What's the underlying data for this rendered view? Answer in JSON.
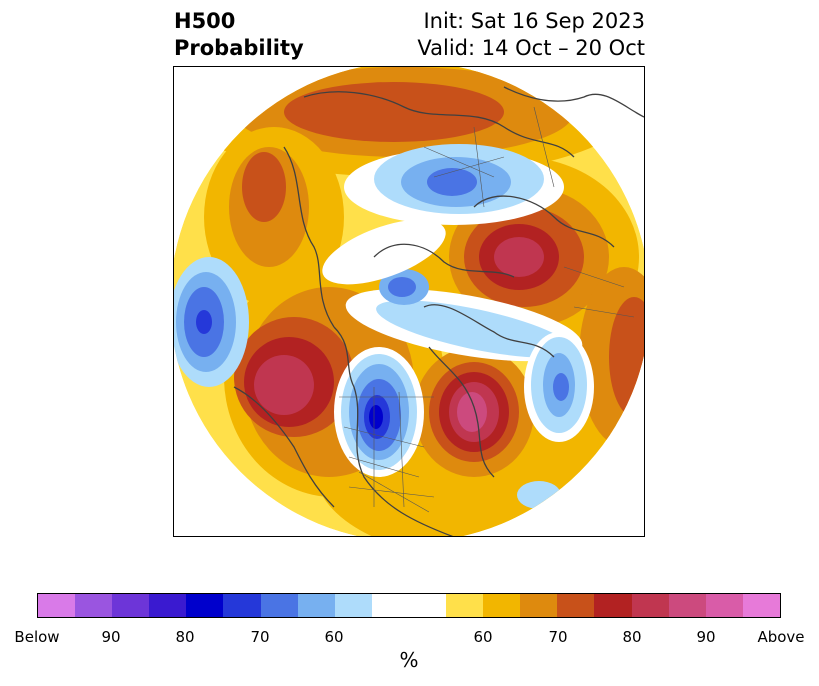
{
  "header": {
    "title_line1": "H500",
    "title_line2": "Probability",
    "init": "Init: Sat 16 Sep 2023",
    "valid": "Valid: 14 Oct – 20 Oct"
  },
  "colorbar": {
    "unit": "%",
    "colors": [
      "#d97ae8",
      "#9a55e0",
      "#6d35d8",
      "#3a1ad0",
      "#0000cc",
      "#2538d9",
      "#4a74e4",
      "#77b0f0",
      "#aedcfb",
      "#ffffff",
      "#ffffff",
      "#ffe04a",
      "#f2b600",
      "#de8a0e",
      "#c8511a",
      "#b22222",
      "#c03650",
      "#cc4a7e",
      "#d95ca8",
      "#e77ad9"
    ],
    "tick_labels": [
      "Below",
      "90",
      "80",
      "70",
      "60",
      "60",
      "70",
      "80",
      "90",
      "Above"
    ]
  },
  "map": {
    "features": [
      "probability-contours",
      "coastlines",
      "country-borders",
      "state-borders"
    ],
    "colors": {
      "below": "#0000cc",
      "above": "#b22222",
      "extreme_above": "#cc4a7e"
    }
  }
}
